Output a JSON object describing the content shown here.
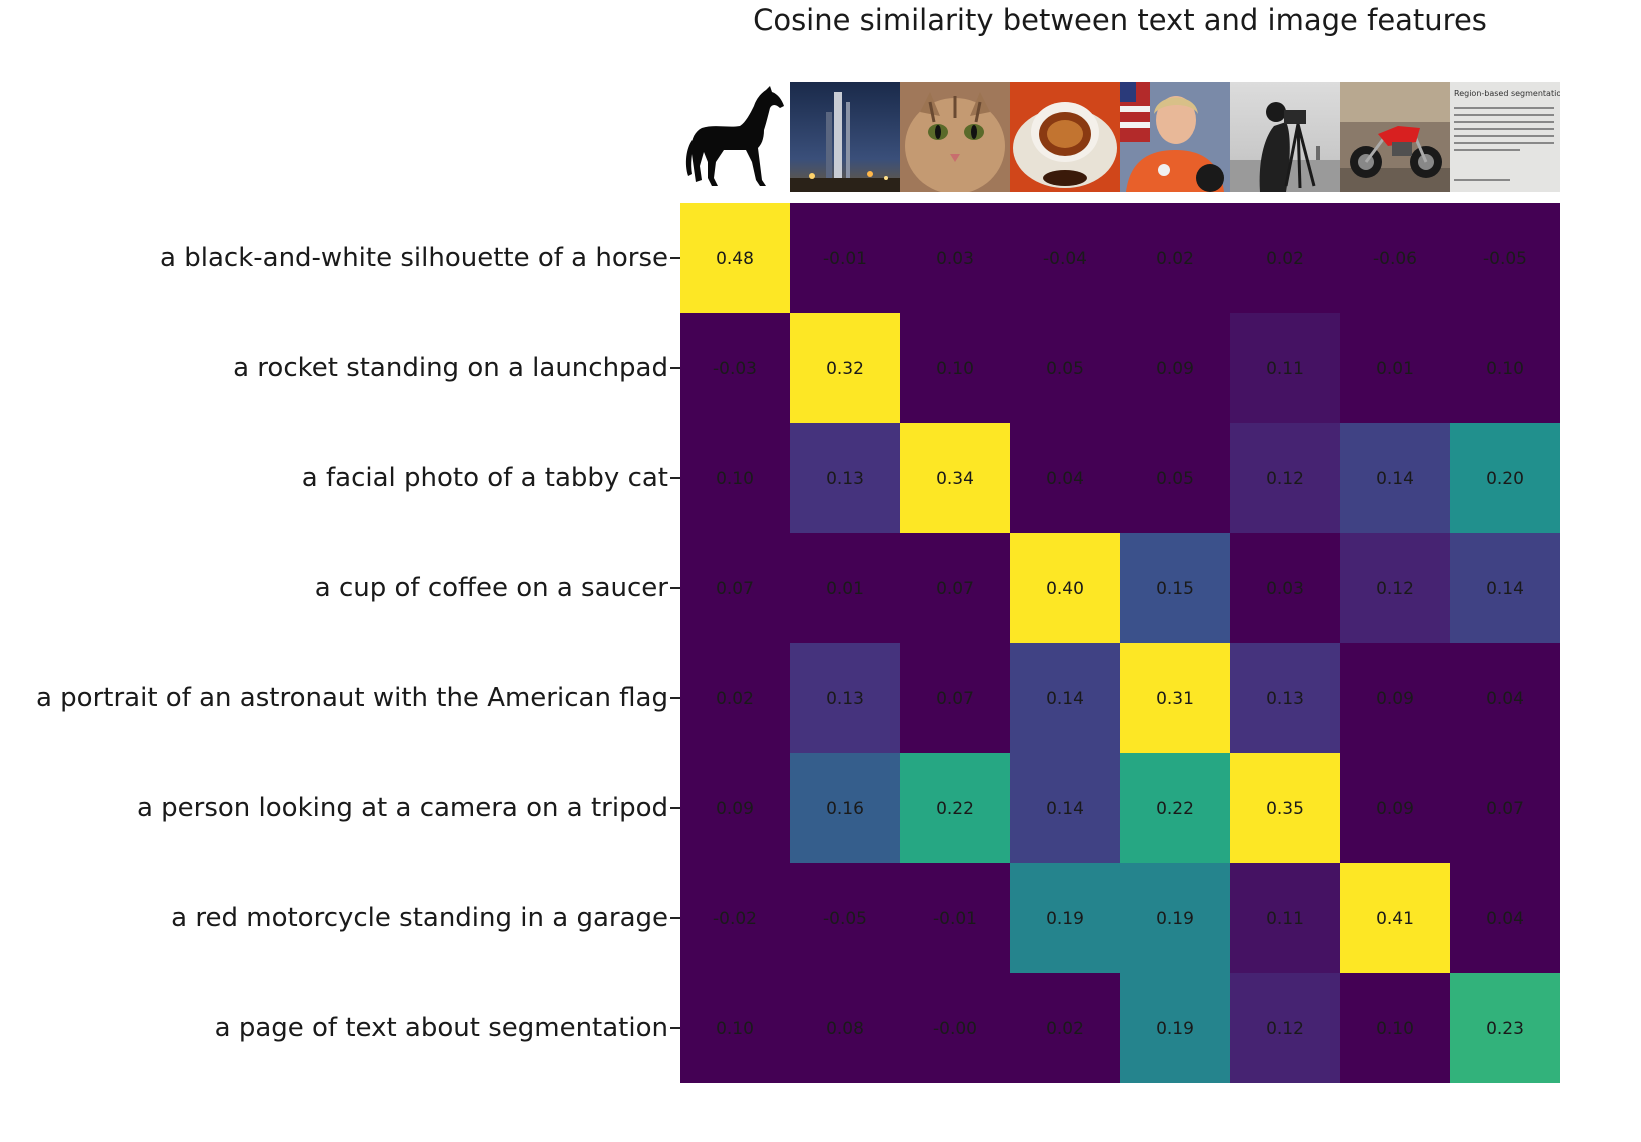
{
  "chart_data": {
    "type": "heatmap",
    "title": "Cosine similarity between text and image features",
    "rows": [
      "a black-and-white silhouette of a horse",
      "a rocket standing on a launchpad",
      "a facial photo of a tabby cat",
      "a cup of coffee on a saucer",
      "a portrait of an astronaut with the American flag",
      "a person looking at a camera on a tripod",
      "a red motorcycle standing in a garage",
      "a page of text about segmentation"
    ],
    "columns": [
      "horse-image",
      "rocket-image",
      "cat-image",
      "coffee-image",
      "astronaut-image",
      "camera-image",
      "motorcycle-image",
      "text-page-image"
    ],
    "values": [
      [
        0.48,
        -0.01,
        0.03,
        -0.04,
        0.02,
        0.02,
        -0.06,
        -0.05
      ],
      [
        -0.03,
        0.32,
        0.1,
        0.05,
        0.09,
        0.11,
        0.01,
        0.1
      ],
      [
        0.1,
        0.13,
        0.34,
        0.04,
        0.05,
        0.12,
        0.14,
        0.2
      ],
      [
        0.07,
        0.01,
        0.07,
        0.4,
        0.15,
        0.03,
        0.12,
        0.14
      ],
      [
        0.02,
        0.13,
        0.07,
        0.14,
        0.31,
        0.13,
        0.09,
        0.04
      ],
      [
        0.09,
        0.16,
        0.22,
        0.14,
        0.22,
        0.35,
        0.09,
        0.07
      ],
      [
        -0.02,
        -0.05,
        -0.01,
        0.19,
        0.19,
        0.11,
        0.41,
        0.04
      ],
      [
        0.1,
        0.08,
        -0.0,
        0.02,
        0.19,
        0.12,
        0.1,
        0.23
      ]
    ],
    "value_labels": [
      [
        "0.48",
        "-0.01",
        "0.03",
        "-0.04",
        "0.02",
        "0.02",
        "-0.06",
        "-0.05"
      ],
      [
        "-0.03",
        "0.32",
        "0.10",
        "0.05",
        "0.09",
        "0.11",
        "0.01",
        "0.10"
      ],
      [
        "0.10",
        "0.13",
        "0.34",
        "0.04",
        "0.05",
        "0.12",
        "0.14",
        "0.20"
      ],
      [
        "0.07",
        "0.01",
        "0.07",
        "0.40",
        "0.15",
        "0.03",
        "0.12",
        "0.14"
      ],
      [
        "0.02",
        "0.13",
        "0.07",
        "0.14",
        "0.31",
        "0.13",
        "0.09",
        "0.04"
      ],
      [
        "0.09",
        "0.16",
        "0.22",
        "0.14",
        "0.22",
        "0.35",
        "0.09",
        "0.07"
      ],
      [
        "-0.02",
        "-0.05",
        "-0.01",
        "0.19",
        "0.19",
        "0.11",
        "0.41",
        "0.04"
      ],
      [
        "0.10",
        "0.08",
        "-0.00",
        "0.02",
        "0.19",
        "0.12",
        "0.10",
        "0.23"
      ]
    ],
    "colormap": "viridis",
    "color_range": [
      0.1,
      0.3
    ],
    "grid": false,
    "legend": "none"
  },
  "thumb_text": {
    "heading": "Region-based segmentation"
  }
}
